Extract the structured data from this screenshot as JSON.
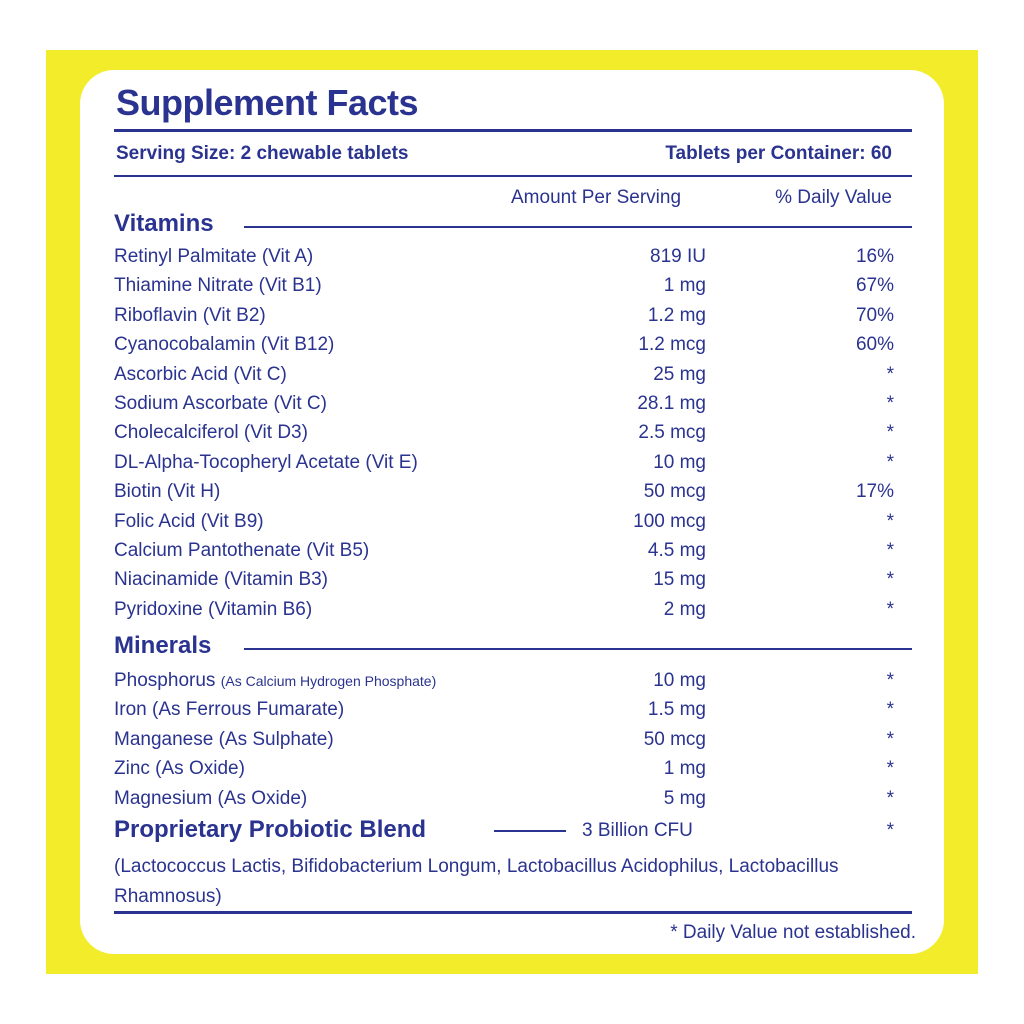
{
  "title": "Supplement Facts",
  "serving_size": "Serving Size: 2 chewable tablets",
  "servings_per_container": "Tablets per Container: 60",
  "col_amount": "Amount Per Serving",
  "col_dv": "% Daily Value",
  "vitamins_heading": "Vitamins",
  "vitamins": [
    {
      "name": "Retinyl Palmitate (Vit A)",
      "amount": "819 IU",
      "dv": "16%"
    },
    {
      "name": "Thiamine Nitrate (Vit B1)",
      "amount": "1 mg",
      "dv": "67%"
    },
    {
      "name": "Riboflavin (Vit B2)",
      "amount": "1.2 mg",
      "dv": "70%"
    },
    {
      "name": "Cyanocobalamin (Vit B12)",
      "amount": "1.2 mcg",
      "dv": "60%"
    },
    {
      "name": "Ascorbic Acid (Vit C)",
      "amount": "25 mg",
      "dv": "*"
    },
    {
      "name": "Sodium Ascorbate (Vit C)",
      "amount": "28.1 mg",
      "dv": "*"
    },
    {
      "name": "Cholecalciferol (Vit D3)",
      "amount": "2.5 mcg",
      "dv": "*"
    },
    {
      "name": "DL-Alpha-Tocopheryl Acetate (Vit E)",
      "amount": "10 mg",
      "dv": "*"
    },
    {
      "name": "Biotin (Vit H)",
      "amount": "50 mcg",
      "dv": "17%"
    },
    {
      "name": "Folic Acid (Vit B9)",
      "amount": "100 mcg",
      "dv": "*"
    },
    {
      "name": "Calcium Pantothenate (Vit B5)",
      "amount": "4.5 mg",
      "dv": "*"
    },
    {
      "name": "Niacinamide  (Vitamin B3)",
      "amount": "15 mg",
      "dv": "*"
    },
    {
      "name": "Pyridoxine  (Vitamin B6)",
      "amount": "2 mg",
      "dv": "*"
    }
  ],
  "minerals_heading": "Minerals",
  "minerals": [
    {
      "name": "Phosphorus",
      "note": "(As Calcium Hydrogen Phosphate)",
      "amount": "10 mg",
      "dv": "*"
    },
    {
      "name": "Iron (As Ferrous Fumarate)",
      "note": "",
      "amount": "1.5 mg",
      "dv": "*"
    },
    {
      "name": "Manganese (As Sulphate)",
      "note": "",
      "amount": "50 mcg",
      "dv": "*"
    },
    {
      "name": "Zinc (As Oxide)",
      "note": "",
      "amount": "1 mg",
      "dv": "*"
    },
    {
      "name": "Magnesium (As Oxide)",
      "note": "",
      "amount": "5 mg",
      "dv": "*"
    }
  ],
  "blend": {
    "name": "Proprietary Probiotic Blend",
    "amount": "3 Billion CFU",
    "dv": "*",
    "description": "(Lactococcus Lactis, Bifidobacterium Longum, Lactobacillus Acidophilus, Lactobacillus Rhamnosus)"
  },
  "footnote": "* Daily Value not established.",
  "colors": {
    "frame": "#f2ec2a",
    "text": "#2a338f",
    "panel": "#ffffff"
  }
}
